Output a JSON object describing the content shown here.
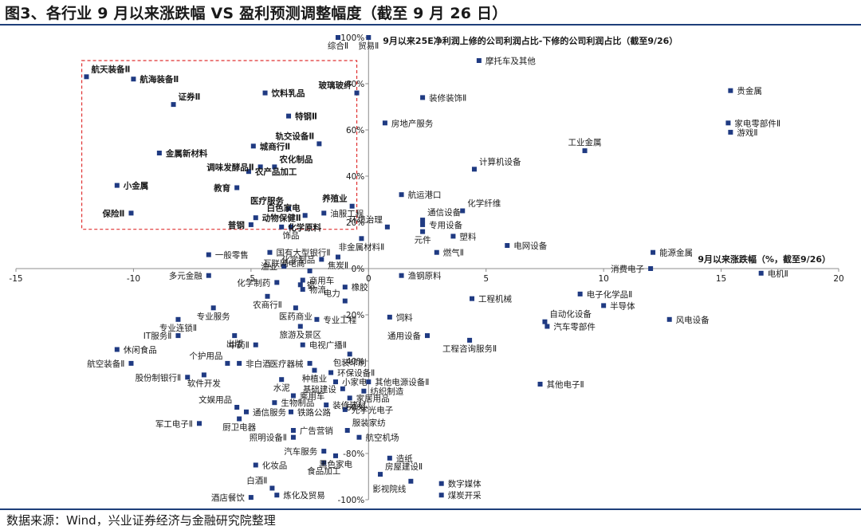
{
  "title": "图3、各行业 9 月以来涨跌幅 VS 盈利预测调整幅度（截至 9 月 26 日）",
  "source": "数据来源：Wind，兴业证券经济与金融研究院整理",
  "colors": {
    "point": "#1f3a82",
    "highlight_box": "#e03030",
    "rule": "#1e3f7a"
  },
  "chart_data": {
    "type": "scatter",
    "xlabel": "9月以来涨跌幅（%，截至9/26）",
    "ylabel": "9月以来25E净利润上修的公司利润占比-下修的公司利润占比（截至9/26）",
    "xlim": [
      -15,
      20
    ],
    "ylim": [
      -100,
      100
    ],
    "x_ticks": [
      -15,
      -10,
      -5,
      0,
      5,
      10,
      15,
      20
    ],
    "y_ticks": [
      -100,
      -80,
      -60,
      -40,
      -20,
      0,
      20,
      40,
      60,
      80,
      100
    ],
    "x_tick_labels": [
      "-15",
      "-10",
      "-5",
      "0",
      "5",
      "10",
      "15",
      "20"
    ],
    "y_tick_labels": [
      "-100%",
      "-80%",
      "-60%",
      "-40%",
      "-20%",
      "0%",
      "20%",
      "40%",
      "60%",
      "80%",
      "100%"
    ],
    "highlight_region": {
      "x": [
        -12.2,
        -0.5
      ],
      "y": [
        17,
        90
      ]
    },
    "points": [
      {
        "label": "综合Ⅱ",
        "x": -1.3,
        "y": 100,
        "bold": false,
        "lp": "b"
      },
      {
        "label": "贸易Ⅱ",
        "x": 0.0,
        "y": 100,
        "bold": false,
        "lp": "b"
      },
      {
        "label": "摩托车及其他",
        "x": 4.7,
        "y": 90,
        "bold": false,
        "lp": "r"
      },
      {
        "label": "航天装备Ⅱ",
        "x": -12.0,
        "y": 83,
        "bold": true,
        "lp": "tr"
      },
      {
        "label": "航海装备Ⅱ",
        "x": -10.0,
        "y": 82,
        "bold": true,
        "lp": "r"
      },
      {
        "label": "证券Ⅱ",
        "x": -8.3,
        "y": 71,
        "bold": true,
        "lp": "tr"
      },
      {
        "label": "饮料乳品",
        "x": -4.4,
        "y": 76,
        "bold": true,
        "lp": "r"
      },
      {
        "label": "玻璃玻纤",
        "x": -0.5,
        "y": 76,
        "bold": true,
        "lp": "tl"
      },
      {
        "label": "装修装饰Ⅱ",
        "x": 2.3,
        "y": 74,
        "bold": false,
        "lp": "r"
      },
      {
        "label": "贵金属",
        "x": 15.4,
        "y": 77,
        "bold": false,
        "lp": "r"
      },
      {
        "label": "特钢Ⅱ",
        "x": -3.4,
        "y": 66,
        "bold": true,
        "lp": "r"
      },
      {
        "label": "房地产服务",
        "x": 0.7,
        "y": 63,
        "bold": false,
        "lp": "r"
      },
      {
        "label": "家电零部件Ⅱ",
        "x": 15.3,
        "y": 63,
        "bold": false,
        "lp": "r"
      },
      {
        "label": "游戏Ⅱ",
        "x": 15.4,
        "y": 59,
        "bold": false,
        "lp": "r"
      },
      {
        "label": "轨交设备Ⅱ",
        "x": -2.1,
        "y": 54,
        "bold": true,
        "lp": "tl"
      },
      {
        "label": "城商行Ⅱ",
        "x": -4.9,
        "y": 53,
        "bold": true,
        "lp": "r"
      },
      {
        "label": "金属新材料",
        "x": -8.9,
        "y": 50,
        "bold": true,
        "lp": "r"
      },
      {
        "label": "工业金属",
        "x": 9.2,
        "y": 51,
        "bold": false,
        "lp": "t"
      },
      {
        "label": "调味发酵品Ⅱ",
        "x": -4.6,
        "y": 44,
        "bold": true,
        "lp": "l"
      },
      {
        "label": "农化制品",
        "x": -4.0,
        "y": 44,
        "bold": true,
        "lp": "tr"
      },
      {
        "label": "农产品加工",
        "x": -5.1,
        "y": 42,
        "bold": true,
        "lp": "r"
      },
      {
        "label": "计算机设备",
        "x": 4.5,
        "y": 43,
        "bold": false,
        "lp": "tr"
      },
      {
        "label": "小金属",
        "x": -10.7,
        "y": 36,
        "bold": true,
        "lp": "r"
      },
      {
        "label": "教育",
        "x": -5.6,
        "y": 35,
        "bold": true,
        "lp": "l"
      },
      {
        "label": "航运港口",
        "x": 1.4,
        "y": 32,
        "bold": false,
        "lp": "r"
      },
      {
        "label": "医疗服务",
        "x": -3.4,
        "y": 26,
        "bold": true,
        "lp": "tl"
      },
      {
        "label": "养殖业",
        "x": -0.7,
        "y": 27,
        "bold": true,
        "lp": "tl"
      },
      {
        "label": "化学纤维",
        "x": 4.0,
        "y": 25,
        "bold": false,
        "lp": "tr"
      },
      {
        "label": "保险Ⅱ",
        "x": -10.1,
        "y": 24,
        "bold": true,
        "lp": "l"
      },
      {
        "label": "白色家电",
        "x": -2.7,
        "y": 23,
        "bold": true,
        "lp": "tl"
      },
      {
        "label": "油服工程",
        "x": -1.9,
        "y": 24,
        "bold": false,
        "lp": "r"
      },
      {
        "label": "动物保健Ⅱ",
        "x": -4.8,
        "y": 22,
        "bold": true,
        "lp": "r"
      },
      {
        "label": "通信设备",
        "x": 2.3,
        "y": 21,
        "bold": false,
        "lp": "tr"
      },
      {
        "label": "环境治理",
        "x": 0.8,
        "y": 18,
        "bold": false,
        "lp": "tl"
      },
      {
        "label": "专用设备",
        "x": 2.3,
        "y": 19,
        "bold": false,
        "lp": "r"
      },
      {
        "label": "普钢",
        "x": -5.0,
        "y": 19,
        "bold": true,
        "lp": "l"
      },
      {
        "label": "化学原料",
        "x": -3.7,
        "y": 18,
        "bold": true,
        "lp": "r"
      },
      {
        "label": "饰品",
        "x": -3.3,
        "y": 18,
        "bold": false,
        "lp": "b"
      },
      {
        "label": "元件",
        "x": 2.3,
        "y": 16,
        "bold": false,
        "lp": "b"
      },
      {
        "label": "塑料",
        "x": 3.6,
        "y": 14,
        "bold": false,
        "lp": "r"
      },
      {
        "label": "非金属材料Ⅱ",
        "x": -0.3,
        "y": 13,
        "bold": false,
        "lp": "b"
      },
      {
        "label": "燃气Ⅱ",
        "x": 2.9,
        "y": 7,
        "bold": false,
        "lp": "r"
      },
      {
        "label": "电网设备",
        "x": 5.9,
        "y": 10,
        "bold": false,
        "lp": "r"
      },
      {
        "label": "能源金属",
        "x": 12.1,
        "y": 7,
        "bold": false,
        "lp": "r"
      },
      {
        "label": "一般零售",
        "x": -6.8,
        "y": 6,
        "bold": false,
        "lp": "r"
      },
      {
        "label": "国有大型银行Ⅱ",
        "x": -4.2,
        "y": 7,
        "bold": false,
        "lp": "r"
      },
      {
        "label": "化学制品",
        "x": -2.0,
        "y": 4,
        "bold": false,
        "lp": "l"
      },
      {
        "label": "焦炭Ⅱ",
        "x": -1.3,
        "y": 5,
        "bold": false,
        "lp": "b"
      },
      {
        "label": "渔业",
        "x": -3.6,
        "y": 1,
        "bold": false,
        "lp": "l"
      },
      {
        "label": "互联网电商",
        "x": -2.5,
        "y": -1,
        "bold": false,
        "lp": "tl"
      },
      {
        "label": "消费电子",
        "x": 12.0,
        "y": 0,
        "bold": false,
        "lp": "l"
      },
      {
        "label": "电机Ⅱ",
        "x": 16.7,
        "y": -2,
        "bold": false,
        "lp": "r"
      },
      {
        "label": "多元金融",
        "x": -6.8,
        "y": -3,
        "bold": false,
        "lp": "l"
      },
      {
        "label": "商用车",
        "x": -2.8,
        "y": -5,
        "bold": false,
        "lp": "r"
      },
      {
        "label": "铝",
        "x": -2.9,
        "y": -7,
        "bold": false,
        "lp": "r"
      },
      {
        "label": "化学制药",
        "x": -3.9,
        "y": -6,
        "bold": false,
        "lp": "l"
      },
      {
        "label": "物流",
        "x": -2.8,
        "y": -9,
        "bold": false,
        "lp": "r"
      },
      {
        "label": "橡胶",
        "x": -1.0,
        "y": -8,
        "bold": false,
        "lp": "r"
      },
      {
        "label": "渔钢原料",
        "x": 1.4,
        "y": -3,
        "bold": false,
        "lp": "r"
      },
      {
        "label": "电子化学品Ⅱ",
        "x": 9.0,
        "y": -11,
        "bold": false,
        "lp": "r"
      },
      {
        "label": "工程机械",
        "x": 4.4,
        "y": -13,
        "bold": false,
        "lp": "r"
      },
      {
        "label": "农商行Ⅱ",
        "x": -4.3,
        "y": -12,
        "bold": false,
        "lp": "b"
      },
      {
        "label": "电力",
        "x": -1.0,
        "y": -14,
        "bold": false,
        "lp": "tl"
      },
      {
        "label": "半导体",
        "x": 10.0,
        "y": -16,
        "bold": false,
        "lp": "r"
      },
      {
        "label": "专业服务",
        "x": -6.6,
        "y": -17,
        "bold": false,
        "lp": "b"
      },
      {
        "label": "医药商业",
        "x": -3.1,
        "y": -17,
        "bold": false,
        "lp": "b"
      },
      {
        "label": "专业连锁Ⅱ",
        "x": -8.1,
        "y": -22,
        "bold": false,
        "lp": "b"
      },
      {
        "label": "饲料",
        "x": 0.9,
        "y": -21,
        "bold": false,
        "lp": "r"
      },
      {
        "label": "风电设备",
        "x": 12.8,
        "y": -22,
        "bold": false,
        "lp": "r"
      },
      {
        "label": "自动化设备",
        "x": 7.5,
        "y": -23,
        "bold": false,
        "lp": "tr"
      },
      {
        "label": "旅游及景区",
        "x": -2.9,
        "y": -25,
        "bold": false,
        "lp": "b"
      },
      {
        "label": "专业工程",
        "x": -2.2,
        "y": -22,
        "bold": false,
        "lp": "r"
      },
      {
        "label": "汽车零部件",
        "x": 7.6,
        "y": -25,
        "bold": false,
        "lp": "r"
      },
      {
        "label": "IT服务Ⅱ",
        "x": -8.1,
        "y": -29,
        "bold": false,
        "lp": "l"
      },
      {
        "label": "通用设备",
        "x": 2.5,
        "y": -29,
        "bold": false,
        "lp": "l"
      },
      {
        "label": "出版",
        "x": -5.7,
        "y": -29,
        "bold": false,
        "lp": "b"
      },
      {
        "label": "工程咨询服务Ⅱ",
        "x": 4.3,
        "y": -31,
        "bold": false,
        "lp": "b"
      },
      {
        "label": "中药Ⅱ",
        "x": -4.8,
        "y": -33,
        "bold": false,
        "lp": "l"
      },
      {
        "label": "电视广播Ⅱ",
        "x": -2.8,
        "y": -33,
        "bold": false,
        "lp": "r"
      },
      {
        "label": "休闲食品",
        "x": -10.7,
        "y": -35,
        "bold": false,
        "lp": "r"
      },
      {
        "label": "包装印刷",
        "x": -0.8,
        "y": -37,
        "bold": false,
        "lp": "b"
      },
      {
        "label": "航空装备Ⅱ",
        "x": -10.1,
        "y": -41,
        "bold": false,
        "lp": "l"
      },
      {
        "label": "个护用品",
        "x": -6.0,
        "y": -41,
        "bold": false,
        "lp": "tl"
      },
      {
        "label": "非白酒",
        "x": -5.5,
        "y": -41,
        "bold": false,
        "lp": "r"
      },
      {
        "label": "医疗器械",
        "x": -2.5,
        "y": -41,
        "bold": false,
        "lp": "l"
      },
      {
        "label": "种植业",
        "x": -2.3,
        "y": -44,
        "bold": false,
        "lp": "b"
      },
      {
        "label": "环保设备Ⅱ",
        "x": -1.6,
        "y": -45,
        "bold": false,
        "lp": "r"
      },
      {
        "label": "股份制银行Ⅱ",
        "x": -7.7,
        "y": -47,
        "bold": false,
        "lp": "l"
      },
      {
        "label": "软件开发",
        "x": -7.0,
        "y": -46,
        "bold": false,
        "lp": "b"
      },
      {
        "label": "小家电",
        "x": -1.4,
        "y": -49,
        "bold": false,
        "lp": "r"
      },
      {
        "label": "其他电源设备Ⅱ",
        "x": 0.0,
        "y": -49,
        "bold": false,
        "lp": "r"
      },
      {
        "label": "其他电子Ⅱ",
        "x": 7.3,
        "y": -50,
        "bold": false,
        "lp": "r"
      },
      {
        "label": "水泥",
        "x": -3.7,
        "y": -48,
        "bold": false,
        "lp": "b"
      },
      {
        "label": "基础建设",
        "x": -1.1,
        "y": -52,
        "bold": false,
        "lp": "l"
      },
      {
        "label": "纺织制造",
        "x": -0.2,
        "y": -53,
        "bold": false,
        "lp": "r"
      },
      {
        "label": "乘用车",
        "x": -3.2,
        "y": -55,
        "bold": false,
        "lp": "r"
      },
      {
        "label": "家居用品",
        "x": -0.8,
        "y": -56,
        "bold": false,
        "lp": "r"
      },
      {
        "label": "生物制品",
        "x": -4.0,
        "y": -58,
        "bold": false,
        "lp": "r"
      },
      {
        "label": "装修建材",
        "x": -1.8,
        "y": -59,
        "bold": false,
        "lp": "r"
      },
      {
        "label": "文娱用品",
        "x": -5.6,
        "y": -60,
        "bold": false,
        "lp": "tl"
      },
      {
        "label": "通信服务",
        "x": -5.2,
        "y": -62,
        "bold": false,
        "lp": "r"
      },
      {
        "label": "铁路公路",
        "x": -3.3,
        "y": -62,
        "bold": false,
        "lp": "r"
      },
      {
        "label": "光学光电子",
        "x": -1.0,
        "y": -61,
        "bold": false,
        "lp": "r"
      },
      {
        "label": "军工电子Ⅱ",
        "x": -7.2,
        "y": -67,
        "bold": false,
        "lp": "l"
      },
      {
        "label": "厨卫电器",
        "x": -5.5,
        "y": -65,
        "bold": false,
        "lp": "b"
      },
      {
        "label": "广告营销",
        "x": -3.2,
        "y": -70,
        "bold": false,
        "lp": "r"
      },
      {
        "label": "服装家纺",
        "x": -0.9,
        "y": -70,
        "bold": false,
        "lp": "tr"
      },
      {
        "label": "照明设备Ⅱ",
        "x": -3.2,
        "y": -73,
        "bold": false,
        "lp": "l"
      },
      {
        "label": "航空机场",
        "x": -0.4,
        "y": -73,
        "bold": false,
        "lp": "r"
      },
      {
        "label": "汽车服务",
        "x": -1.9,
        "y": -79,
        "bold": false,
        "lp": "l"
      },
      {
        "label": "造纸",
        "x": 0.9,
        "y": -82,
        "bold": false,
        "lp": "r"
      },
      {
        "label": "化妆品",
        "x": -4.8,
        "y": -85,
        "bold": false,
        "lp": "r"
      },
      {
        "label": "食品加工",
        "x": -1.9,
        "y": -84,
        "bold": false,
        "lp": "b"
      },
      {
        "label": "黑色家电",
        "x": -1.4,
        "y": -81,
        "bold": false,
        "lp": "b"
      },
      {
        "label": "房屋建设Ⅱ",
        "x": 0.5,
        "y": -89,
        "bold": false,
        "lp": "tr"
      },
      {
        "label": "影视院线",
        "x": 1.8,
        "y": -92,
        "bold": false,
        "lp": "bl"
      },
      {
        "label": "数字媒体",
        "x": 3.1,
        "y": -93,
        "bold": false,
        "lp": "r"
      },
      {
        "label": "白酒Ⅱ",
        "x": -4.1,
        "y": -95,
        "bold": false,
        "lp": "tl"
      },
      {
        "label": "炼化及贸易",
        "x": -3.9,
        "y": -98,
        "bold": false,
        "lp": "r"
      },
      {
        "label": "酒店餐饮",
        "x": -5.0,
        "y": -99,
        "bold": false,
        "lp": "l"
      },
      {
        "label": "煤炭开采",
        "x": 3.1,
        "y": -98,
        "bold": false,
        "lp": "r"
      }
    ]
  }
}
